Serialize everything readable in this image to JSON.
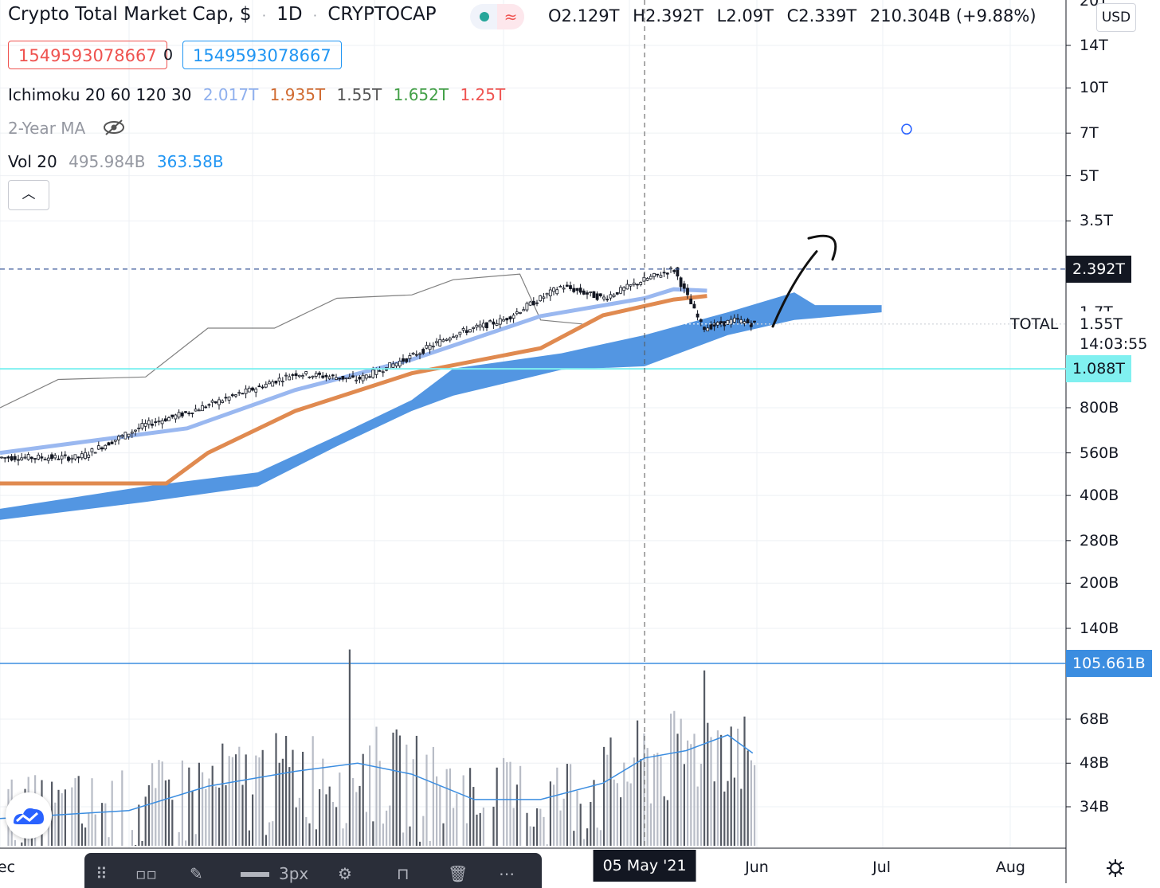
{
  "header": {
    "title": "Crypto Total Market Cap, $",
    "separator1": "·",
    "interval": "1D",
    "separator2": "·",
    "symbol": "CRYPTOCAP",
    "open_label": "O",
    "open": "2.129T",
    "high_label": "H",
    "high": "2.392T",
    "low_label": "L",
    "low": "2.09T",
    "close_label": "C",
    "close": "2.339T",
    "change": "210.304B (+9.88%)",
    "wave_icon": "≈",
    "sell_value": "1549593078667",
    "spread": "0",
    "buy_value": "1549593078667",
    "currency": "USD"
  },
  "indicators": {
    "ichimoku": {
      "name": "Ichimoku 20 60 120 30",
      "v1": "2.017T",
      "v2": "1.935T",
      "v3": "1.55T",
      "v4": "1.652T",
      "v5": "1.25T"
    },
    "ma": {
      "name": "2-Year MA",
      "icon": "eye-off-icon"
    },
    "vol": {
      "name": "Vol 20",
      "v1": "495.984B",
      "v2": "363.58B"
    }
  },
  "y_axis": {
    "top_cut": "20T",
    "ticks": [
      {
        "label": "14T",
        "value": 14000
      },
      {
        "label": "10T",
        "value": 10000
      },
      {
        "label": "7T",
        "value": 7000
      },
      {
        "label": "5T",
        "value": 5000
      },
      {
        "label": "3.5T",
        "value": 3500
      },
      {
        "label": "800B",
        "value": 800
      },
      {
        "label": "560B",
        "value": 560
      },
      {
        "label": "400B",
        "value": 400
      },
      {
        "label": "280B",
        "value": 280
      },
      {
        "label": "200B",
        "value": 200
      },
      {
        "label": "140B",
        "value": 140
      }
    ],
    "vol_ticks": [
      {
        "label": "68B",
        "value": 68
      },
      {
        "label": "48B",
        "value": 48
      },
      {
        "label": "34B",
        "value": 34
      }
    ],
    "partial_1_7T": "1.7T",
    "current_price": "1.55T",
    "countdown": "14:03:55",
    "symbol_tag": "TOTAL"
  },
  "tags": {
    "high_line": {
      "label": "2.392T",
      "value": 2392,
      "color": "#131722"
    },
    "support_line": {
      "label": "1.088T",
      "value": 1088,
      "color": "#80f0f0"
    },
    "vol_line": {
      "label": "105.661B",
      "value": 105.661,
      "color": "#3b8de0"
    }
  },
  "x_axis": {
    "labels": [
      {
        "label": "ec",
        "date": "2020-12-01"
      },
      {
        "label": "Jun",
        "date": "2021-06-01"
      },
      {
        "label": "Jul",
        "date": "2021-07-01"
      },
      {
        "label": "Aug",
        "date": "2021-08-01"
      }
    ],
    "crosshair_label": "05 May '21",
    "crosshair_date": "2021-05-05"
  },
  "toolbar": {
    "width_label": "3px"
  },
  "colors": {
    "tenkan": "#9ab8f0",
    "kijun": "#e08a50",
    "cloud": "#4a90e0",
    "lagging": "#808080",
    "vol_ma": "#3b8de0",
    "accent": "#2962ff"
  },
  "chart_data": {
    "type": "candlestick",
    "title": "Crypto Total Market Cap, $",
    "scale": "log",
    "ylim": [
      110,
      20000
    ],
    "units": "billions USD",
    "price_path": [
      {
        "date": "2020-12-01",
        "close": 540
      },
      {
        "date": "2020-12-20",
        "close": 540
      },
      {
        "date": "2021-01-05",
        "close": 700
      },
      {
        "date": "2021-01-15",
        "close": 770
      },
      {
        "date": "2021-02-01",
        "close": 940
      },
      {
        "date": "2021-02-10",
        "close": 1050
      },
      {
        "date": "2021-02-25",
        "close": 1000
      },
      {
        "date": "2021-03-10",
        "close": 1200
      },
      {
        "date": "2021-03-20",
        "close": 1430
      },
      {
        "date": "2021-04-01",
        "close": 1600
      },
      {
        "date": "2021-04-15",
        "close": 2090
      },
      {
        "date": "2021-04-25",
        "close": 1900
      },
      {
        "date": "2021-05-05",
        "close": 2200
      },
      {
        "date": "2021-05-12",
        "close": 2392
      },
      {
        "date": "2021-05-19",
        "close": 1500
      },
      {
        "date": "2021-05-27",
        "close": 1600
      },
      {
        "date": "2021-05-31",
        "close": 1550
      }
    ],
    "tenkan": [
      {
        "date": "2020-12-01",
        "value": 560
      },
      {
        "date": "2021-01-15",
        "value": 680
      },
      {
        "date": "2021-02-10",
        "value": 920
      },
      {
        "date": "2021-03-10",
        "value": 1170
      },
      {
        "date": "2021-04-10",
        "value": 1650
      },
      {
        "date": "2021-05-05",
        "value": 1900
      },
      {
        "date": "2021-05-12",
        "value": 2040
      },
      {
        "date": "2021-05-20",
        "value": 2017
      }
    ],
    "kijun": [
      {
        "date": "2020-12-01",
        "value": 440
      },
      {
        "date": "2021-01-10",
        "value": 440
      },
      {
        "date": "2021-01-20",
        "value": 560
      },
      {
        "date": "2021-02-10",
        "value": 780
      },
      {
        "date": "2021-03-10",
        "value": 1050
      },
      {
        "date": "2021-04-10",
        "value": 1280
      },
      {
        "date": "2021-04-25",
        "value": 1660
      },
      {
        "date": "2021-05-12",
        "value": 1880
      },
      {
        "date": "2021-05-20",
        "value": 1935
      }
    ],
    "cloud_upper": [
      {
        "date": "2020-12-01",
        "value": 360
      },
      {
        "date": "2021-01-05",
        "value": 430
      },
      {
        "date": "2021-02-01",
        "value": 480
      },
      {
        "date": "2021-02-20",
        "value": 640
      },
      {
        "date": "2021-03-10",
        "value": 850
      },
      {
        "date": "2021-03-20",
        "value": 1090
      },
      {
        "date": "2021-04-15",
        "value": 1230
      },
      {
        "date": "2021-05-05",
        "value": 1420
      },
      {
        "date": "2021-05-25",
        "value": 1700
      },
      {
        "date": "2021-06-10",
        "value": 1990
      },
      {
        "date": "2021-06-15",
        "value": 1800
      },
      {
        "date": "2021-07-01",
        "value": 1800
      }
    ],
    "cloud_lower": [
      {
        "date": "2020-12-01",
        "value": 330
      },
      {
        "date": "2021-01-05",
        "value": 380
      },
      {
        "date": "2021-02-01",
        "value": 430
      },
      {
        "date": "2021-02-20",
        "value": 590
      },
      {
        "date": "2021-03-10",
        "value": 780
      },
      {
        "date": "2021-03-20",
        "value": 880
      },
      {
        "date": "2021-04-15",
        "value": 1080
      },
      {
        "date": "2021-05-05",
        "value": 1110
      },
      {
        "date": "2021-05-25",
        "value": 1420
      },
      {
        "date": "2021-06-10",
        "value": 1600
      },
      {
        "date": "2021-07-01",
        "value": 1700
      }
    ],
    "lagging_span": [
      {
        "date": "2020-12-01",
        "value": 800
      },
      {
        "date": "2020-12-15",
        "value": 1000
      },
      {
        "date": "2021-01-05",
        "value": 1020
      },
      {
        "date": "2021-01-20",
        "value": 1500
      },
      {
        "date": "2021-02-05",
        "value": 1500
      },
      {
        "date": "2021-02-20",
        "value": 1900
      },
      {
        "date": "2021-03-10",
        "value": 1950
      },
      {
        "date": "2021-03-20",
        "value": 2200
      },
      {
        "date": "2021-04-05",
        "value": 2300
      },
      {
        "date": "2021-04-10",
        "value": 1600
      },
      {
        "date": "2021-04-20",
        "value": 1550
      }
    ],
    "volume_ma": [
      {
        "date": "2020-12-01",
        "value": 31
      },
      {
        "date": "2021-01-01",
        "value": 33
      },
      {
        "date": "2021-01-20",
        "value": 40
      },
      {
        "date": "2021-02-10",
        "value": 45
      },
      {
        "date": "2021-02-25",
        "value": 48
      },
      {
        "date": "2021-03-10",
        "value": 44
      },
      {
        "date": "2021-03-25",
        "value": 36
      },
      {
        "date": "2021-04-10",
        "value": 36
      },
      {
        "date": "2021-04-25",
        "value": 41
      },
      {
        "date": "2021-05-05",
        "value": 50
      },
      {
        "date": "2021-05-15",
        "value": 53
      },
      {
        "date": "2021-05-25",
        "value": 60
      },
      {
        "date": "2021-05-31",
        "value": 52
      }
    ],
    "volume_spikes": [
      {
        "date": "2021-02-23",
        "value": 118
      },
      {
        "date": "2021-05-19",
        "value": 100
      }
    ]
  }
}
